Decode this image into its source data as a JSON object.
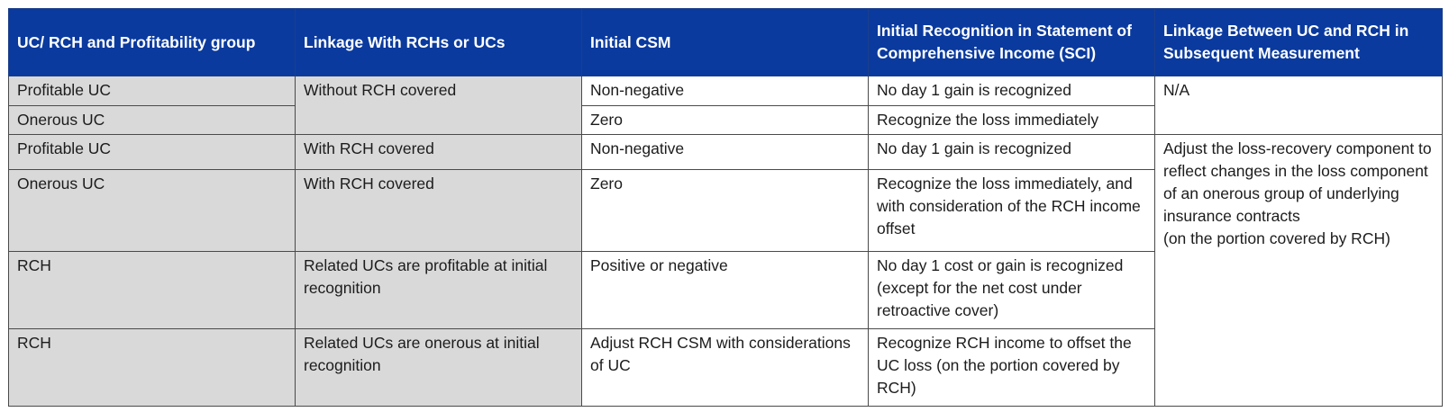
{
  "table": {
    "headers": [
      "UC/ RCH and Profitability group",
      "Linkage With RCHs or UCs",
      "Initial CSM",
      "Initial Recognition in Statement of Comprehensive Income (SCI)",
      "Linkage Between UC and RCH in Subsequent Measurement"
    ],
    "rows": [
      {
        "group": "Profitable UC",
        "linkage": "Without RCH covered",
        "csm": "Non-negative",
        "sci": "No day 1 gain is recognized",
        "subsequent": "N/A"
      },
      {
        "group": "Onerous UC",
        "csm": "Zero",
        "sci": "Recognize the loss immediately"
      },
      {
        "group": "Profitable UC",
        "linkage": "With RCH covered",
        "csm": "Non-negative",
        "sci": "No day 1 gain is recognized",
        "subsequent": "Adjust the loss-recovery component to reflect changes in the loss component of an onerous group of underlying insurance contracts\n (on the portion covered by RCH)"
      },
      {
        "group": "Onerous UC",
        "linkage": "With RCH covered",
        "csm": "Zero",
        "sci": "Recognize the loss immediately, and with consideration of the RCH income offset"
      },
      {
        "group": "RCH",
        "linkage": "Related UCs are profitable at initial recognition",
        "csm": "Positive or negative",
        "sci": "No day 1 cost or gain is recognized (except for the net cost under retroactive cover)"
      },
      {
        "group": "RCH",
        "linkage": "Related UCs are onerous at initial recognition",
        "csm": "Adjust RCH CSM with considerations of UC",
        "sci": "Recognize RCH income to offset the UC loss (on the portion covered by RCH)"
      }
    ]
  }
}
